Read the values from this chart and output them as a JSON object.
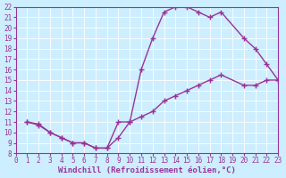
{
  "xlabel": "Windchill (Refroidissement éolien,°C)",
  "ylabel": "",
  "bg_color": "#cceeff",
  "line_color": "#993399",
  "marker_color": "#993399",
  "xlim": [
    0,
    23
  ],
  "ylim": [
    8,
    22
  ],
  "xticks": [
    0,
    1,
    2,
    3,
    4,
    5,
    6,
    7,
    8,
    9,
    10,
    11,
    12,
    13,
    14,
    15,
    16,
    17,
    18,
    19,
    20,
    21,
    22,
    23
  ],
  "yticks": [
    8,
    9,
    10,
    11,
    12,
    13,
    14,
    15,
    16,
    17,
    18,
    19,
    20,
    21,
    22
  ],
  "curve1_x": [
    1,
    2,
    3,
    4,
    5,
    6,
    7,
    8,
    9,
    10,
    11,
    12,
    13,
    14,
    15,
    16,
    17,
    18,
    20,
    21,
    22,
    23
  ],
  "curve1_y": [
    11,
    10.7,
    10,
    9.5,
    9,
    9,
    8.5,
    8.5,
    9.5,
    11,
    16,
    19,
    21.5,
    22,
    22,
    21.5,
    21,
    21.5,
    19,
    18,
    16.5,
    15
  ],
  "curve2_x": [
    1,
    2,
    3,
    4,
    5,
    6,
    7,
    8,
    9,
    10,
    11,
    12,
    13,
    14,
    15,
    16,
    17,
    18,
    20,
    21,
    22,
    23
  ],
  "curve2_y": [
    11,
    10.8,
    10,
    9.5,
    9,
    9,
    8.5,
    8.5,
    11,
    11,
    11.5,
    12,
    13,
    13.5,
    14,
    14.5,
    15,
    15.5,
    14.5,
    14.5,
    15,
    15
  ],
  "font_family": "monospace",
  "tick_fontsize": 5.5,
  "label_fontsize": 6.5
}
